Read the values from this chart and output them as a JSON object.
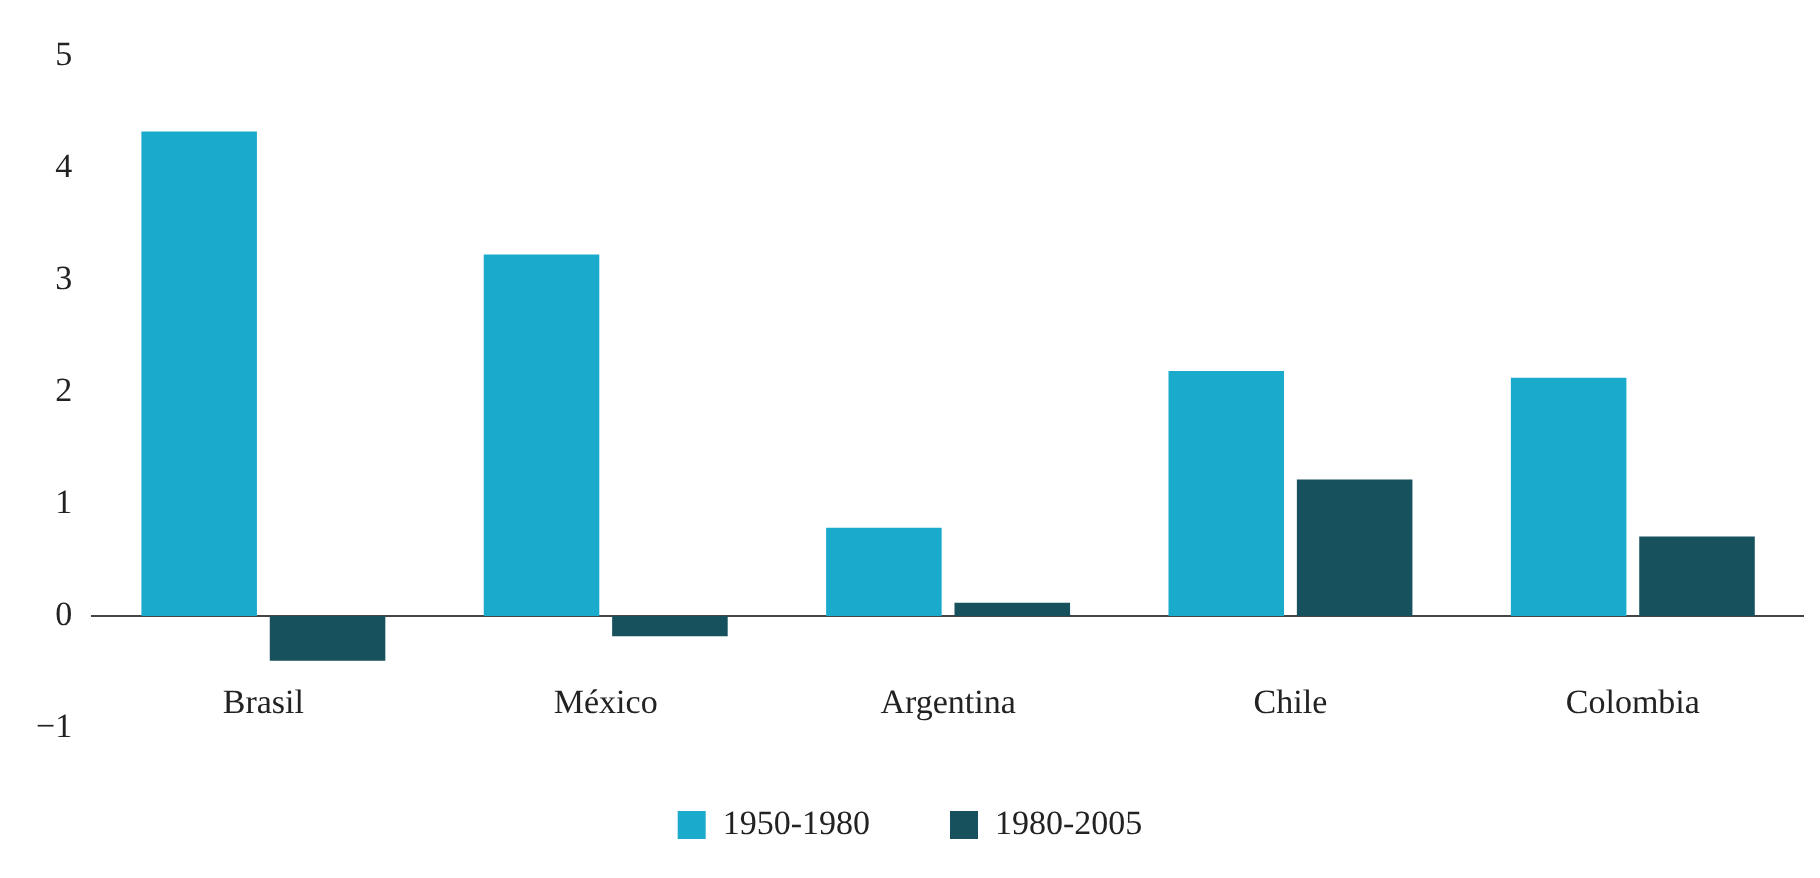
{
  "chart_data": {
    "type": "bar",
    "categories": [
      "Brasil",
      "México",
      "Argentina",
      "Chile",
      "Colombia"
    ],
    "series": [
      {
        "name": "1950-1980",
        "color": "#1aabcc",
        "values": [
          4.33,
          3.23,
          0.79,
          2.19,
          2.13
        ]
      },
      {
        "name": "1980-2005",
        "color": "#17515e",
        "values": [
          -0.4,
          -0.18,
          0.12,
          1.22,
          0.71
        ]
      }
    ],
    "ylim": [
      -1,
      5
    ],
    "yticks": [
      {
        "value": -1,
        "label": "−1"
      },
      0,
      1,
      2,
      3,
      4,
      5
    ],
    "grid": false,
    "legend": "bottom"
  }
}
